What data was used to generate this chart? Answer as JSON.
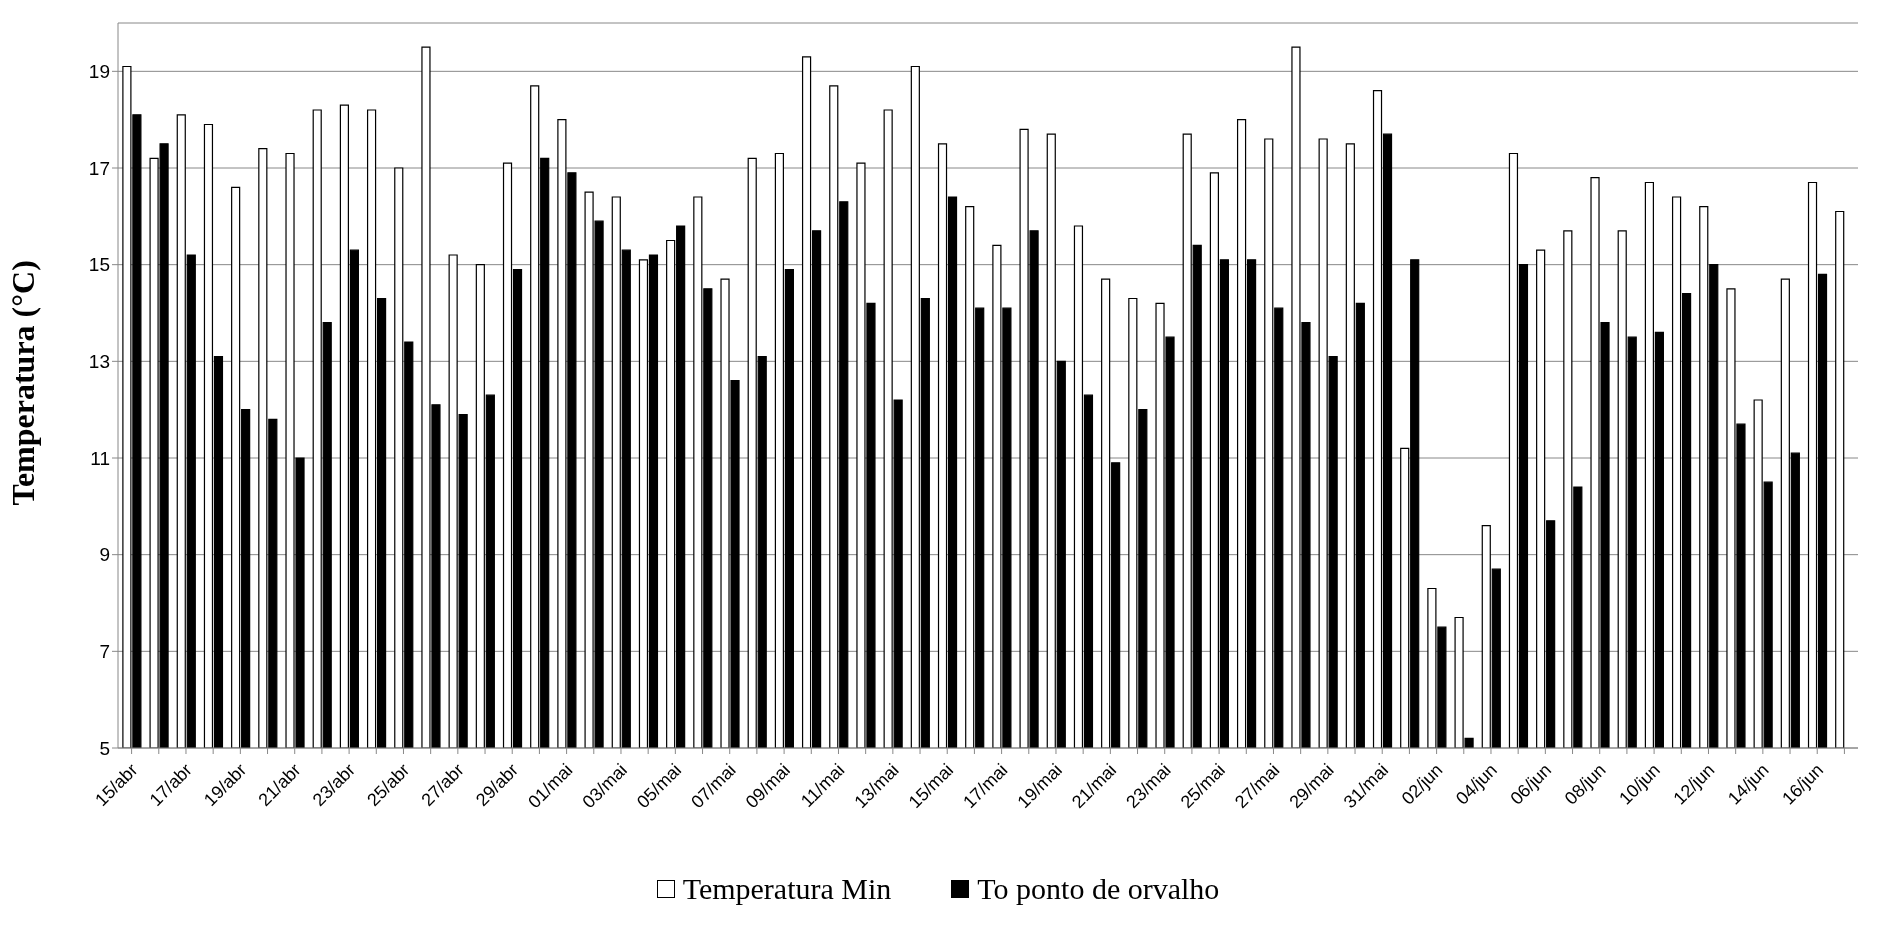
{
  "chart_data": {
    "type": "bar",
    "ylabel": "Temperatura (°C)",
    "categories": [
      "15/abr",
      null,
      "17/abr",
      null,
      "19/abr",
      null,
      "21/abr",
      null,
      "23/abr",
      null,
      "25/abr",
      null,
      "27/abr",
      null,
      "29/abr",
      null,
      "01/mai",
      null,
      "03/mai",
      null,
      "05/mai",
      null,
      "07/mai",
      null,
      "09/mai",
      null,
      "11/mai",
      null,
      "13/mai",
      null,
      "15/mai",
      null,
      "17/mai",
      null,
      "19/mai",
      null,
      "21/mai",
      null,
      "23/mai",
      null,
      "25/mai",
      null,
      "27/mai",
      null,
      "29/mai",
      null,
      "31/mai",
      null,
      "02/jun",
      null,
      "04/jun",
      null,
      "06/jun",
      null,
      "08/jun",
      null,
      "10/jun",
      null,
      "12/jun",
      null,
      "14/jun",
      null,
      "16/jun",
      null
    ],
    "series": [
      {
        "name": "Temperatura Min",
        "color": "#ffffff",
        "values": [
          19.1,
          17.2,
          18.1,
          17.9,
          16.6,
          17.4,
          17.3,
          18.2,
          18.3,
          18.2,
          17.0,
          19.5,
          15.2,
          15.0,
          17.1,
          18.7,
          18.0,
          16.5,
          16.4,
          15.1,
          15.5,
          16.4,
          14.7,
          17.2,
          17.3,
          19.3,
          18.7,
          17.1,
          18.2,
          19.1,
          17.5,
          16.2,
          15.4,
          17.8,
          17.7,
          15.8,
          14.7,
          14.3,
          14.2,
          17.7,
          16.9,
          18.0,
          17.6,
          19.5,
          17.6,
          17.5,
          18.6,
          11.2,
          8.3,
          7.7,
          9.6,
          17.3,
          15.3,
          15.7,
          16.8,
          15.7,
          16.7,
          16.4,
          16.2,
          14.5,
          12.2,
          14.7,
          16.7,
          16.1
        ]
      },
      {
        "name": "To ponto de orvalho",
        "color": "#000000",
        "values": [
          18.1,
          17.5,
          15.2,
          13.1,
          12.0,
          11.8,
          11.0,
          13.8,
          15.3,
          14.3,
          13.4,
          12.1,
          11.9,
          12.3,
          14.9,
          17.2,
          16.9,
          15.9,
          15.3,
          15.2,
          15.8,
          14.5,
          12.6,
          13.1,
          14.9,
          15.7,
          16.3,
          14.2,
          12.2,
          14.3,
          16.4,
          14.1,
          14.1,
          15.7,
          13.0,
          12.3,
          10.9,
          12.0,
          13.5,
          15.4,
          15.1,
          15.1,
          14.1,
          13.8,
          13.1,
          14.2,
          17.7,
          15.1,
          7.5,
          5.2,
          8.7,
          15.0,
          9.7,
          10.4,
          13.8,
          13.5,
          13.6,
          14.4,
          15.0,
          11.7,
          10.5,
          11.1,
          14.8,
          null
        ]
      }
    ],
    "ylim": [
      5,
      20
    ],
    "yticks": [
      5,
      7,
      9,
      11,
      13,
      15,
      17,
      19
    ],
    "grid": "y",
    "legend": "bottom"
  }
}
